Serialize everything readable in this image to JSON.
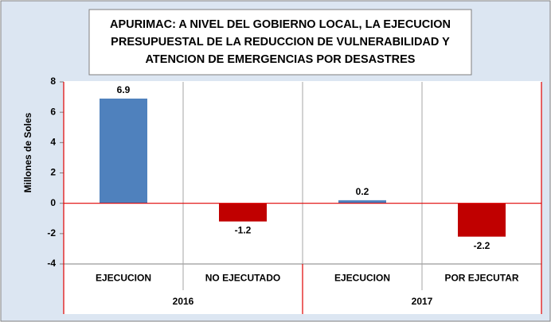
{
  "chart_data": {
    "type": "bar",
    "title": [
      "APURIMAC:  A NIVEL DEL GOBIERNO  LOCAL, LA EJECUCION",
      "PRESUPUESTAL  DE LA REDUCCION DE VULNERABILIDAD  Y",
      "ATENCION DE EMERGENCIAS  POR DESASTRES"
    ],
    "y_label": "Millones de Soles",
    "categories": [
      "EJECUCION",
      "NO EJECUTADO",
      "EJECUCION",
      "POR EJECUTAR"
    ],
    "groups": [
      "2016",
      "2017"
    ],
    "values": [
      6.9,
      -1.2,
      0.2,
      -2.2
    ],
    "colors": [
      "#4f81bd",
      "#c00000",
      "#4f81bd",
      "#c00000"
    ],
    "ylim": [
      -4,
      8
    ],
    "yticks": [
      -4,
      -2,
      0,
      2,
      4,
      6,
      8
    ],
    "grid": false
  }
}
